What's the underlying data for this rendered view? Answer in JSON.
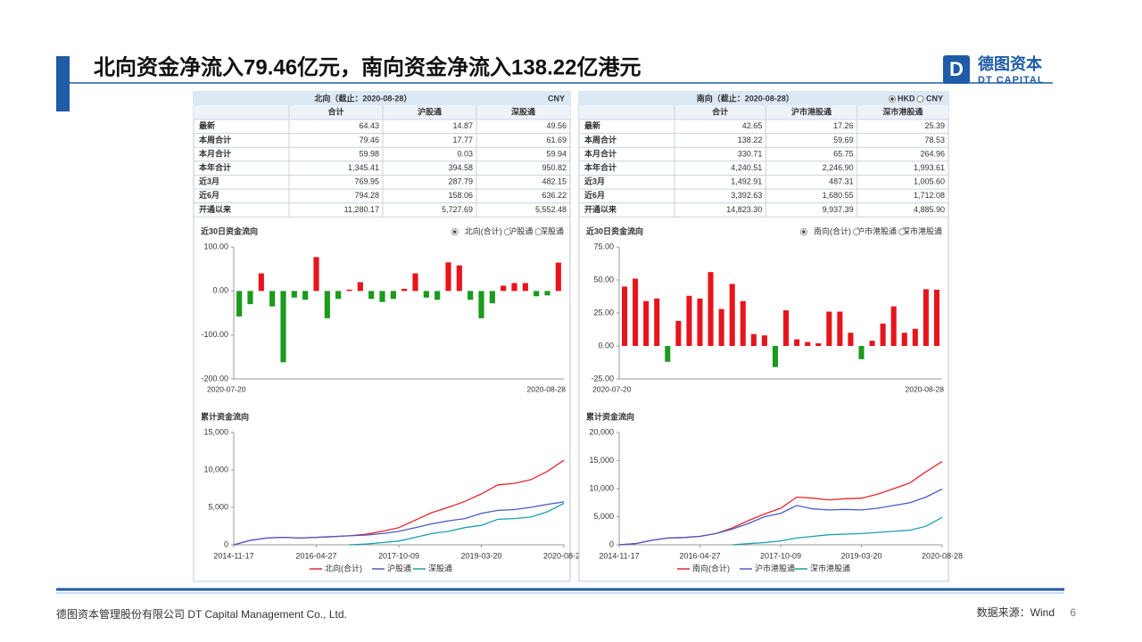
{
  "header": {
    "title": "北向资金净流入79.46亿元，南向资金净流入138.22亿港元",
    "logo_cn": "德图资本",
    "logo_en": "DT CAPITAL"
  },
  "panels": [
    {
      "table": {
        "title": "北向（截止：2020-08-28）",
        "currency_options": [
          "CNY"
        ],
        "selected_currency": null,
        "columns": [
          "合计",
          "沪股通",
          "深股通"
        ],
        "rows": [
          {
            "label": "最新",
            "cells": [
              "64.43",
              "14.87",
              "49.56"
            ]
          },
          {
            "label": "本周合计",
            "cells": [
              "79.46",
              "17.77",
              "61.69"
            ]
          },
          {
            "label": "本月合计",
            "cells": [
              "59.98",
              "0.03",
              "59.94"
            ]
          },
          {
            "label": "本年合计",
            "cells": [
              "1,345.41",
              "394.58",
              "950.82"
            ]
          },
          {
            "label": "近3月",
            "cells": [
              "769.95",
              "287.79",
              "482.15"
            ]
          },
          {
            "label": "近6月",
            "cells": [
              "794.28",
              "158.06",
              "636.22"
            ]
          },
          {
            "label": "开通以来",
            "cells": [
              "11,280.17",
              "5,727.69",
              "5,552.48"
            ]
          }
        ]
      },
      "flow_chart": {
        "type": "bar",
        "title": "近30日资金流向",
        "legend_options": [
          "北向(合计)",
          "沪股通",
          "深股通"
        ],
        "selected_option": 0,
        "categories": [
          "2020-07-20",
          null,
          null,
          null,
          null,
          null,
          null,
          null,
          null,
          null,
          null,
          null,
          null,
          null,
          null,
          null,
          null,
          null,
          null,
          null,
          null,
          null,
          null,
          null,
          null,
          null,
          null,
          null,
          null,
          "2020-08-28"
        ],
        "values": [
          -58,
          -30,
          40,
          -35,
          -162,
          -15,
          -20,
          77,
          -62,
          -18,
          3,
          20,
          -18,
          -25,
          -18,
          5,
          40,
          -15,
          -20,
          65,
          58,
          -20,
          -62,
          -28,
          12,
          18,
          18,
          -12,
          -10,
          64.43
        ],
        "ylim": [
          -200,
          100
        ],
        "yticks": [
          {
            "value": 100,
            "label": "100.00"
          },
          {
            "value": 0,
            "label": "0.00"
          },
          {
            "value": -100,
            "label": "-100.00"
          },
          {
            "value": -200,
            "label": "-200.00"
          }
        ],
        "up_color": "#e8141b",
        "down_color": "#1c9a1c"
      },
      "cumulative_chart": {
        "type": "line",
        "title": "累计资金流向",
        "x": [
          "2014-11-17",
          null,
          null,
          null,
          null,
          "2016-04-27",
          null,
          null,
          null,
          null,
          "2017-10-09",
          null,
          null,
          null,
          null,
          "2019-03-20",
          null,
          null,
          null,
          null,
          "2020-08-28"
        ],
        "series": [
          {
            "name": "北向(合计)",
            "color": "#e8262b",
            "values": [
              0,
              600,
              900,
              1000,
              900,
              1000,
              1100,
              1200,
              1400,
              1800,
              2300,
              3300,
              4300,
              5000,
              5800,
              6800,
              8000,
              8200,
              8700,
              9800,
              11280
            ]
          },
          {
            "name": "沪股通",
            "color": "#4a5bc4",
            "values": [
              0,
              600,
              900,
              1000,
              900,
              1000,
              1100,
              1200,
              1300,
              1500,
              1800,
              2300,
              2800,
              3200,
              3500,
              4200,
              4600,
              4700,
              5000,
              5400,
              5728
            ]
          },
          {
            "name": "深股通",
            "color": "#1a9fb0",
            "values": [
              null,
              null,
              null,
              null,
              null,
              null,
              null,
              0,
              100,
              300,
              500,
              1000,
              1500,
              1800,
              2300,
              2600,
              3400,
              3500,
              3700,
              4400,
              5552
            ]
          }
        ],
        "ylim": [
          0,
          15000
        ],
        "yticks": [
          0,
          {
            "value": 5000,
            "label": "5,000"
          },
          {
            "value": 10000,
            "label": "10,000"
          },
          {
            "value": 15000,
            "label": "15,000"
          }
        ]
      }
    },
    {
      "table": {
        "title": "南向（截止：2020-08-28）",
        "currency_options": [
          "HKD",
          "CNY"
        ],
        "selected_currency": 0,
        "columns": [
          "合计",
          "沪市港股通",
          "深市港股通"
        ],
        "rows": [
          {
            "label": "最新",
            "cells": [
              "42.65",
              "17.26",
              "25.39"
            ]
          },
          {
            "label": "本周合计",
            "cells": [
              "138.22",
              "59.69",
              "78.53"
            ]
          },
          {
            "label": "本月合计",
            "cells": [
              "330.71",
              "65.75",
              "264.96"
            ]
          },
          {
            "label": "本年合计",
            "cells": [
              "4,240.51",
              "2,246.90",
              "1,993.61"
            ]
          },
          {
            "label": "近3月",
            "cells": [
              "1,492.91",
              "487.31",
              "1,005.60"
            ]
          },
          {
            "label": "近6月",
            "cells": [
              "3,392.63",
              "1,680.55",
              "1,712.08"
            ]
          },
          {
            "label": "开通以来",
            "cells": [
              "14,823.30",
              "9,937.39",
              "4,885.90"
            ]
          }
        ]
      },
      "flow_chart": {
        "type": "bar",
        "title": "近30日资金流向",
        "legend_options": [
          "南向(合计)",
          "沪市港股通",
          "深市港股通"
        ],
        "selected_option": 0,
        "categories": [
          "2020-07-20",
          null,
          null,
          null,
          null,
          null,
          null,
          null,
          null,
          null,
          null,
          null,
          null,
          null,
          null,
          null,
          null,
          null,
          null,
          null,
          null,
          null,
          null,
          null,
          null,
          null,
          null,
          null,
          null,
          "2020-08-28"
        ],
        "values": [
          45,
          51,
          34,
          36,
          -12,
          19,
          38,
          36,
          56,
          28,
          47,
          34,
          9,
          8,
          -16,
          27,
          5,
          3,
          2,
          26,
          26,
          10,
          -10,
          4,
          17,
          30,
          10,
          13,
          43,
          42.65
        ],
        "ylim": [
          -25,
          75
        ],
        "yticks": [
          {
            "value": 75,
            "label": "75.00"
          },
          {
            "value": 50,
            "label": "50.00"
          },
          {
            "value": 25,
            "label": "25.00"
          },
          {
            "value": 0,
            "label": "0.00"
          },
          {
            "value": -25,
            "label": "-25.00"
          }
        ],
        "up_color": "#e8141b",
        "down_color": "#1c9a1c"
      },
      "cumulative_chart": {
        "type": "line",
        "title": "累计资金流向",
        "x": [
          "2014-11-17",
          null,
          null,
          null,
          null,
          "2016-04-27",
          null,
          null,
          null,
          null,
          "2017-10-09",
          null,
          null,
          null,
          null,
          "2019-03-20",
          null,
          null,
          null,
          null,
          "2020-08-28"
        ],
        "series": [
          {
            "name": "南向(合计)",
            "color": "#e8262b",
            "values": [
              0,
              200,
              800,
              1200,
              1300,
              1500,
              2000,
              3000,
              4300,
              5500,
              6500,
              8500,
              8300,
              8000,
              8200,
              8300,
              9000,
              10000,
              11000,
              13000,
              14823
            ]
          },
          {
            "name": "沪市港股通",
            "color": "#4a5bc4",
            "values": [
              0,
              200,
              800,
              1200,
              1300,
              1500,
              2000,
              2800,
              3800,
              5000,
              5600,
              7000,
              6400,
              6200,
              6300,
              6200,
              6500,
              7000,
              7500,
              8500,
              9937
            ]
          },
          {
            "name": "深市港股通",
            "color": "#1a9fb0",
            "values": [
              null,
              null,
              null,
              null,
              null,
              null,
              null,
              0,
              200,
              400,
              700,
              1200,
              1500,
              1800,
              1900,
              2000,
              2200,
              2400,
              2600,
              3300,
              4886
            ]
          }
        ],
        "ylim": [
          0,
          20000
        ],
        "yticks": [
          0,
          {
            "value": 5000,
            "label": "5,000"
          },
          {
            "value": 10000,
            "label": "10,000"
          },
          {
            "value": 15000,
            "label": "15,000"
          },
          {
            "value": 20000,
            "label": "20,000"
          }
        ]
      }
    }
  ],
  "footer": {
    "company": "德图资本管理股份有限公司  DT Capital Management Co., Ltd.",
    "source": "数据来源：Wind",
    "page": "6"
  }
}
